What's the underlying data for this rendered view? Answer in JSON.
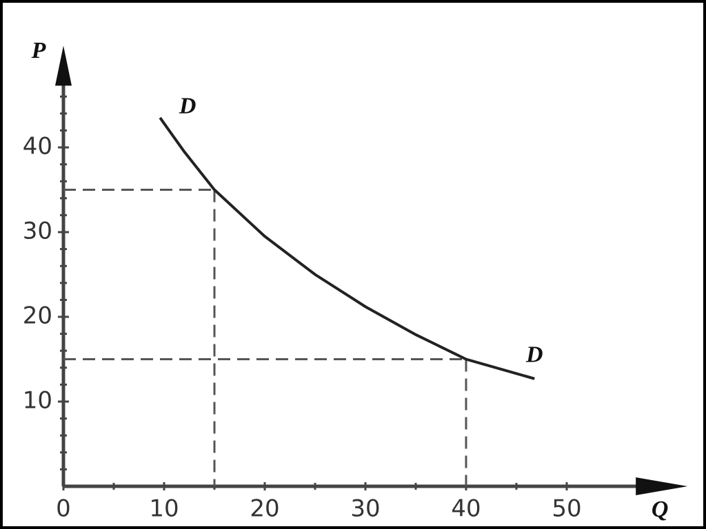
{
  "chart_data": {
    "type": "line",
    "x_label": "Q",
    "y_label": "P",
    "x": [
      9.6,
      12,
      15,
      20,
      25,
      30,
      35,
      40,
      46.8
    ],
    "series": [
      {
        "name": "D",
        "color": "#222222",
        "values": [
          43.5,
          39.5,
          35,
          29.5,
          25,
          21.2,
          17.9,
          15,
          12.7
        ]
      }
    ],
    "reference_points": [
      {
        "x": 15,
        "y": 35
      },
      {
        "x": 40,
        "y": 15
      }
    ],
    "xlim": [
      0,
      62
    ],
    "ylim": [
      0,
      52
    ],
    "xticks": [
      0,
      10,
      20,
      30,
      40,
      50
    ],
    "yticks": [
      10,
      20,
      30,
      40
    ],
    "x_minor_ticks": [
      5,
      15,
      25,
      35,
      45
    ],
    "y_minor_ticks": [
      2,
      4,
      6,
      8,
      12,
      14,
      16,
      18,
      22,
      24,
      26,
      28,
      32,
      34,
      36,
      38,
      42,
      44,
      46
    ],
    "grid": false
  }
}
